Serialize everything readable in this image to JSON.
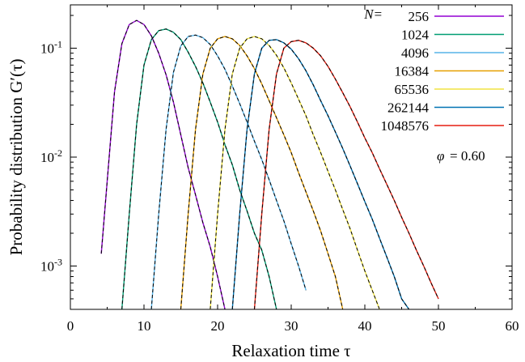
{
  "chart_data": {
    "type": "line",
    "xlabel": "Relaxation time τ",
    "ylabel": "Probability distribution G′(τ)",
    "xlim": [
      0,
      60
    ],
    "ylim": [
      0.0004,
      0.25
    ],
    "yscale": "log",
    "x_ticks": [
      "0",
      "10",
      "20",
      "30",
      "40",
      "50",
      "60"
    ],
    "x_tick_values": [
      0,
      10,
      20,
      30,
      40,
      50,
      60
    ],
    "y_ticks": [
      "10-3",
      "10-2",
      "10-1"
    ],
    "y_tick_values": [
      0.001,
      0.01,
      0.1
    ],
    "legend_position": "top-right",
    "legend_prefix": "N=",
    "annotation_symbol": "φ",
    "annotation_value": "= 0.60",
    "fit_style": "dashed black lines",
    "series": [
      {
        "name": "256",
        "color": "#9400d3",
        "x": [
          4.2,
          5,
          6,
          7,
          8,
          9,
          10,
          11,
          12,
          13,
          14,
          15,
          16,
          17,
          18,
          19,
          20,
          21
        ],
        "y": [
          0.0013,
          0.006,
          0.04,
          0.11,
          0.165,
          0.18,
          0.165,
          0.13,
          0.09,
          0.057,
          0.032,
          0.016,
          0.008,
          0.0045,
          0.0025,
          0.0015,
          0.0008,
          0.0004
        ]
      },
      {
        "name": "1024",
        "color": "#009e73",
        "x": [
          7,
          8,
          9,
          10,
          11,
          12,
          13,
          14,
          15,
          16,
          17,
          18,
          19,
          20,
          21,
          22,
          23,
          24,
          25,
          26,
          27,
          28
        ],
        "y": [
          0.0004,
          0.003,
          0.02,
          0.07,
          0.12,
          0.145,
          0.15,
          0.14,
          0.12,
          0.092,
          0.068,
          0.048,
          0.032,
          0.021,
          0.013,
          0.0085,
          0.005,
          0.0032,
          0.002,
          0.0014,
          0.0008,
          0.0004
        ]
      },
      {
        "name": "4096",
        "color": "#56b4e9",
        "x": [
          11,
          12,
          13,
          14,
          15,
          16,
          17,
          18,
          19,
          20,
          21,
          22,
          23,
          24,
          25,
          26,
          27,
          28,
          29,
          30,
          31,
          32
        ],
        "y": [
          0.0004,
          0.003,
          0.018,
          0.06,
          0.105,
          0.128,
          0.132,
          0.125,
          0.108,
          0.085,
          0.064,
          0.045,
          0.031,
          0.021,
          0.014,
          0.0095,
          0.0062,
          0.004,
          0.0026,
          0.0016,
          0.001,
          0.0006
        ]
      },
      {
        "name": "16384",
        "color": "#e69f00",
        "x": [
          15,
          16,
          17,
          18,
          19,
          20,
          21,
          22,
          23,
          24,
          25,
          26,
          27,
          28,
          29,
          30,
          31,
          32,
          33,
          34,
          35,
          36,
          37
        ],
        "y": [
          0.0004,
          0.003,
          0.018,
          0.058,
          0.1,
          0.122,
          0.128,
          0.122,
          0.106,
          0.085,
          0.065,
          0.047,
          0.033,
          0.023,
          0.016,
          0.011,
          0.0072,
          0.0048,
          0.0032,
          0.0021,
          0.0013,
          0.0008,
          0.0004
        ]
      },
      {
        "name": "65536",
        "color": "#f0e442",
        "x": [
          19,
          20,
          21,
          22,
          23,
          24,
          25,
          26,
          27,
          28,
          29,
          30,
          31,
          32,
          33,
          34,
          35,
          36,
          37,
          38,
          39,
          40,
          41,
          42
        ],
        "y": [
          0.0004,
          0.003,
          0.018,
          0.058,
          0.1,
          0.122,
          0.128,
          0.122,
          0.106,
          0.086,
          0.066,
          0.048,
          0.034,
          0.024,
          0.016,
          0.011,
          0.0074,
          0.005,
          0.0033,
          0.0022,
          0.0014,
          0.0009,
          0.0006,
          0.0004
        ]
      },
      {
        "name": "262144",
        "color": "#0072b2",
        "x": [
          22,
          23,
          24,
          25,
          26,
          27,
          28,
          29,
          30,
          31,
          32,
          33,
          34,
          35,
          36,
          37,
          38,
          39,
          40,
          41,
          42,
          43,
          44,
          45,
          46
        ],
        "y": [
          0.0004,
          0.003,
          0.018,
          0.058,
          0.1,
          0.118,
          0.12,
          0.112,
          0.098,
          0.08,
          0.062,
          0.046,
          0.033,
          0.024,
          0.017,
          0.012,
          0.0083,
          0.0057,
          0.0039,
          0.0027,
          0.0018,
          0.0012,
          0.0008,
          0.0005,
          0.0004
        ]
      },
      {
        "name": "1048576",
        "color": "#e51e10",
        "x": [
          25,
          26,
          27,
          28,
          29,
          30,
          31,
          32,
          33,
          34,
          35,
          36,
          37,
          38,
          39,
          40,
          41,
          42,
          43,
          44,
          45,
          46,
          47,
          48,
          49,
          50
        ],
        "y": [
          0.0004,
          0.003,
          0.018,
          0.058,
          0.1,
          0.115,
          0.118,
          0.112,
          0.1,
          0.085,
          0.068,
          0.052,
          0.039,
          0.029,
          0.021,
          0.015,
          0.011,
          0.0078,
          0.0056,
          0.004,
          0.0028,
          0.002,
          0.0014,
          0.001,
          0.0007,
          0.0005
        ]
      }
    ]
  }
}
